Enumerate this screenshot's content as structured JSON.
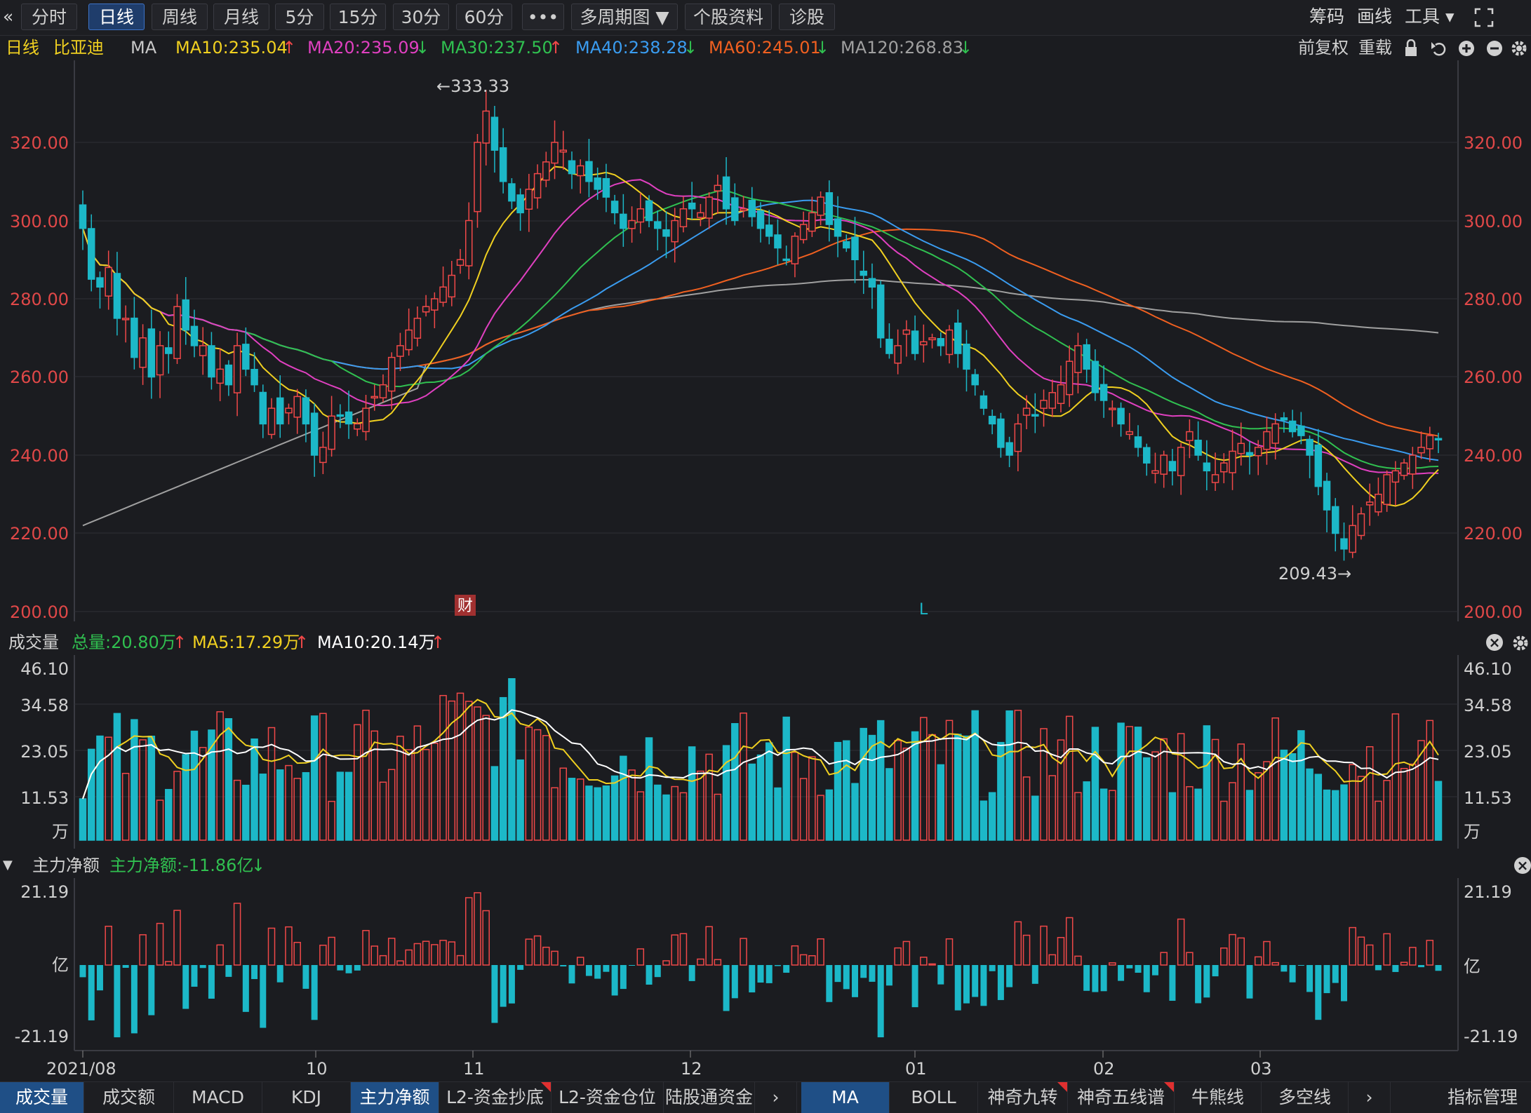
{
  "toolbar": {
    "back_icon": "«",
    "tabs": [
      "分时",
      "日线",
      "周线",
      "月线",
      "5分",
      "15分",
      "30分",
      "60分",
      "•••",
      "多周期图 ▼",
      "个股资料",
      "诊股"
    ],
    "active_tab": "日线",
    "right_tools": [
      "筹码",
      "画线",
      "工具 ▾"
    ],
    "expand_icon": "fullscreen-icon"
  },
  "legend": {
    "period": "日线",
    "stock_name": "比亚迪",
    "indicator": "MA",
    "ma10": "MA10:235.04",
    "ma20": "MA20:235.09",
    "ma30": "MA30:237.50",
    "ma40": "MA40:238.28",
    "ma60": "MA60:245.01",
    "ma120": "MA120:268.83",
    "up_arrow": "↑",
    "down_arrow": "↓",
    "adjust": "前复权",
    "reload": "重载"
  },
  "price_axis": {
    "ticks": [
      "320.00",
      "300.00",
      "280.00",
      "260.00",
      "240.00",
      "220.00",
      "200.00"
    ],
    "high_label": "←333.33",
    "low_label": "209.43→",
    "marker_cai": "财",
    "marker_l": "L"
  },
  "volume_panel": {
    "title": "成交量",
    "total": "总量:20.80万",
    "ma5": "MA5:17.29万",
    "ma10": "MA10:20.14万",
    "ticks": [
      "46.10",
      "34.58",
      "23.05",
      "11.53",
      "万"
    ]
  },
  "flow_panel": {
    "title": "主力净额",
    "value": "主力净额:-11.86亿",
    "ticks": [
      "21.19",
      "亿",
      "-21.19"
    ]
  },
  "date_axis": [
    "2021/08",
    "10",
    "11",
    "12",
    "01",
    "02",
    "03"
  ],
  "bottom_tabs_left": [
    "成交量",
    "成交额",
    "MACD",
    "KDJ",
    "主力净额",
    "L2-资金抄底",
    "L2-资金仓位",
    "陆股通资金"
  ],
  "bottom_tabs_right": [
    "MA",
    "BOLL",
    "神奇九转",
    "神奇五线谱",
    "牛熊线",
    "多空线"
  ],
  "bottom_more": "›",
  "bottom_manage": "指标管理",
  "colors": {
    "up": "#f04848",
    "down": "#1cb8c8",
    "ma10": "#f0d020",
    "ma20": "#e040c0",
    "ma30": "#30c050",
    "ma40": "#3a9cf0",
    "ma60": "#f06020",
    "ma120": "#a0a0a0"
  },
  "chart_data": {
    "type": "candlestick",
    "ylim": [
      200,
      333.33
    ],
    "high": 333.33,
    "low": 209.43,
    "x_labels": [
      "2021/08",
      "10",
      "11",
      "12",
      "01",
      "02",
      "03"
    ],
    "closes": [
      298,
      285,
      283,
      288,
      275,
      275,
      265,
      270,
      260,
      268,
      266,
      278,
      272,
      268,
      268,
      260,
      262,
      258,
      268,
      262,
      258,
      248,
      252,
      248,
      252,
      255,
      248,
      240,
      242,
      250,
      250,
      248,
      248,
      252,
      255,
      258,
      265,
      268,
      272,
      275,
      278,
      280,
      283,
      286,
      290,
      300,
      320,
      328,
      318,
      310,
      305,
      302,
      308,
      312,
      315,
      320,
      318,
      312,
      314,
      310,
      308,
      306,
      302,
      298,
      300,
      303,
      300,
      298,
      296,
      300,
      303,
      303,
      302,
      306,
      309,
      303,
      300,
      303,
      301,
      298,
      296,
      293,
      290,
      296,
      299,
      302,
      306,
      299,
      296,
      293,
      290,
      286,
      283,
      270,
      266,
      268,
      272,
      266,
      269,
      270,
      268,
      272,
      266,
      262,
      258,
      252,
      248,
      242,
      240,
      248,
      252,
      250,
      254,
      256,
      258,
      264,
      268,
      262,
      256,
      254,
      252,
      248,
      246,
      242,
      238,
      236,
      240,
      236,
      242,
      246,
      240,
      236,
      235,
      238,
      241,
      243,
      240,
      242,
      246,
      248,
      249,
      246,
      245,
      240,
      232,
      226,
      220,
      216,
      222,
      225,
      228,
      230,
      235,
      236,
      238,
      240,
      242,
      245,
      244
    ],
    "volume_ticks": [
      46.1,
      34.58,
      23.05,
      11.53
    ],
    "flow_ticks": [
      21.19,
      -21.19
    ]
  }
}
